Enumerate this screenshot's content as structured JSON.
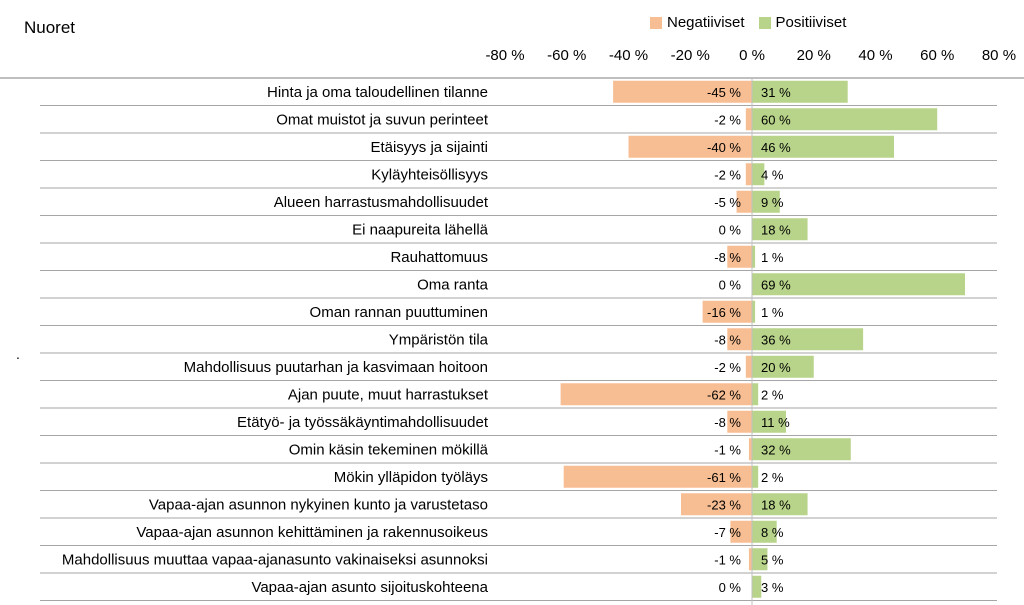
{
  "chart_data": {
    "type": "bar",
    "title": "Nuoret",
    "orientation": "horizontal-diverging",
    "categories": [
      "Hinta ja oma taloudellinen tilanne",
      "Omat muistot ja suvun perinteet",
      "Etäisyys ja sijainti",
      "Kyläyhteisöllisyys",
      "Alueen harrastusmahdollisuudet",
      "Ei naapureita lähellä",
      "Rauhattomuus",
      "Oma ranta",
      "Oman rannan puuttuminen",
      "Ympäristön tila",
      "Mahdollisuus puutarhan ja kasvimaan hoitoon",
      "Ajan puute, muut harrastukset",
      "Etätyö- ja työssäkäyntimahdollisuudet",
      "Omin käsin tekeminen mökillä",
      "Mökin ylläpidon työläys",
      "Vapaa-ajan asunnon nykyinen kunto ja varustetaso",
      "Vapaa-ajan asunnon kehittäminen ja rakennusoikeus",
      "Mahdollisuus muuttaa vapaa-ajanasunto vakinaiseksi asunnoksi",
      "Vapaa-ajan asunto sijoituskohteena"
    ],
    "series": [
      {
        "name": "Negatiiviset",
        "color": "#f8be93",
        "values": [
          -45,
          -2,
          -40,
          -2,
          -5,
          0,
          -8,
          0,
          -16,
          -8,
          -2,
          -62,
          -8,
          -1,
          -61,
          -23,
          -7,
          -1,
          0
        ]
      },
      {
        "name": "Positiiviset",
        "color": "#b8d48a",
        "values": [
          31,
          60,
          46,
          4,
          9,
          18,
          1,
          69,
          1,
          36,
          20,
          2,
          11,
          32,
          2,
          18,
          8,
          5,
          3
        ]
      }
    ],
    "x_ticks": [
      "-80 %",
      "-60 %",
      "-40 %",
      "-20 %",
      "0 %",
      "20 %",
      "40 %",
      "60 %",
      "80 %"
    ],
    "xlim": [
      -80,
      80
    ],
    "value_suffix": " %",
    "legend_position": "top-right",
    "grid": "horizontal row separators"
  },
  "stray_mark": "."
}
